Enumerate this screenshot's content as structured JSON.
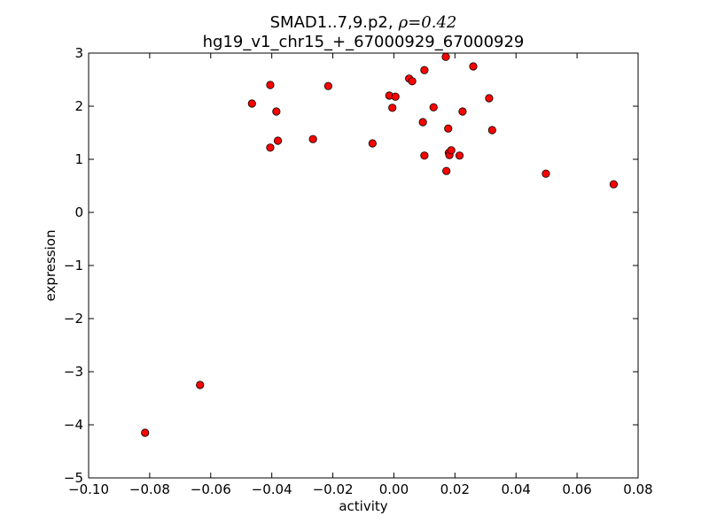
{
  "chart_data": {
    "type": "scatter",
    "title_line1": "SMAD1..7,9.p2,",
    "title_rho_symbol": "ρ",
    "title_rho_value": "=0.42",
    "title_line2": "hg19_v1_chr15_+_67000929_67000929",
    "xlabel": "activity",
    "ylabel": "expression",
    "xlim": [
      -0.1,
      0.08
    ],
    "ylim": [
      -5,
      3
    ],
    "xticks": [
      -0.1,
      -0.08,
      -0.06,
      -0.04,
      -0.02,
      0.0,
      0.02,
      0.04,
      0.06,
      0.08
    ],
    "xtick_labels": [
      "−0.10",
      "−0.08",
      "−0.06",
      "−0.04",
      "−0.02",
      "0.00",
      "0.02",
      "0.04",
      "0.06",
      "0.08"
    ],
    "yticks": [
      3,
      2,
      1,
      0,
      -1,
      -2,
      -3,
      -4,
      -5
    ],
    "ytick_labels": [
      "3",
      "2",
      "1",
      "0",
      "−1",
      "−2",
      "−3",
      "−4",
      "−5"
    ],
    "grid": false,
    "marker_color": "#ff0000",
    "marker_edge_color": "#000000",
    "points": [
      {
        "x": -0.0815,
        "y": -4.15
      },
      {
        "x": -0.0635,
        "y": -3.25
      },
      {
        "x": -0.0465,
        "y": 2.05
      },
      {
        "x": -0.0405,
        "y": 2.4
      },
      {
        "x": -0.0405,
        "y": 1.22
      },
      {
        "x": -0.0385,
        "y": 1.9
      },
      {
        "x": -0.038,
        "y": 1.35
      },
      {
        "x": -0.0265,
        "y": 1.38
      },
      {
        "x": -0.0215,
        "y": 2.38
      },
      {
        "x": -0.007,
        "y": 1.3
      },
      {
        "x": -0.0015,
        "y": 2.2
      },
      {
        "x": -0.0005,
        "y": 1.97
      },
      {
        "x": 0.0005,
        "y": 2.18
      },
      {
        "x": 0.005,
        "y": 2.52
      },
      {
        "x": 0.006,
        "y": 2.47
      },
      {
        "x": 0.0095,
        "y": 1.7
      },
      {
        "x": 0.01,
        "y": 2.68
      },
      {
        "x": 0.01,
        "y": 1.07
      },
      {
        "x": 0.013,
        "y": 1.98
      },
      {
        "x": 0.017,
        "y": 2.93
      },
      {
        "x": 0.0172,
        "y": 0.78
      },
      {
        "x": 0.0178,
        "y": 1.58
      },
      {
        "x": 0.018,
        "y": 1.12
      },
      {
        "x": 0.0182,
        "y": 1.08
      },
      {
        "x": 0.0188,
        "y": 1.17
      },
      {
        "x": 0.0215,
        "y": 1.07
      },
      {
        "x": 0.0225,
        "y": 1.9
      },
      {
        "x": 0.026,
        "y": 2.75
      },
      {
        "x": 0.0312,
        "y": 2.15
      },
      {
        "x": 0.0322,
        "y": 1.55
      },
      {
        "x": 0.0498,
        "y": 0.73
      },
      {
        "x": 0.072,
        "y": 0.53
      }
    ]
  }
}
